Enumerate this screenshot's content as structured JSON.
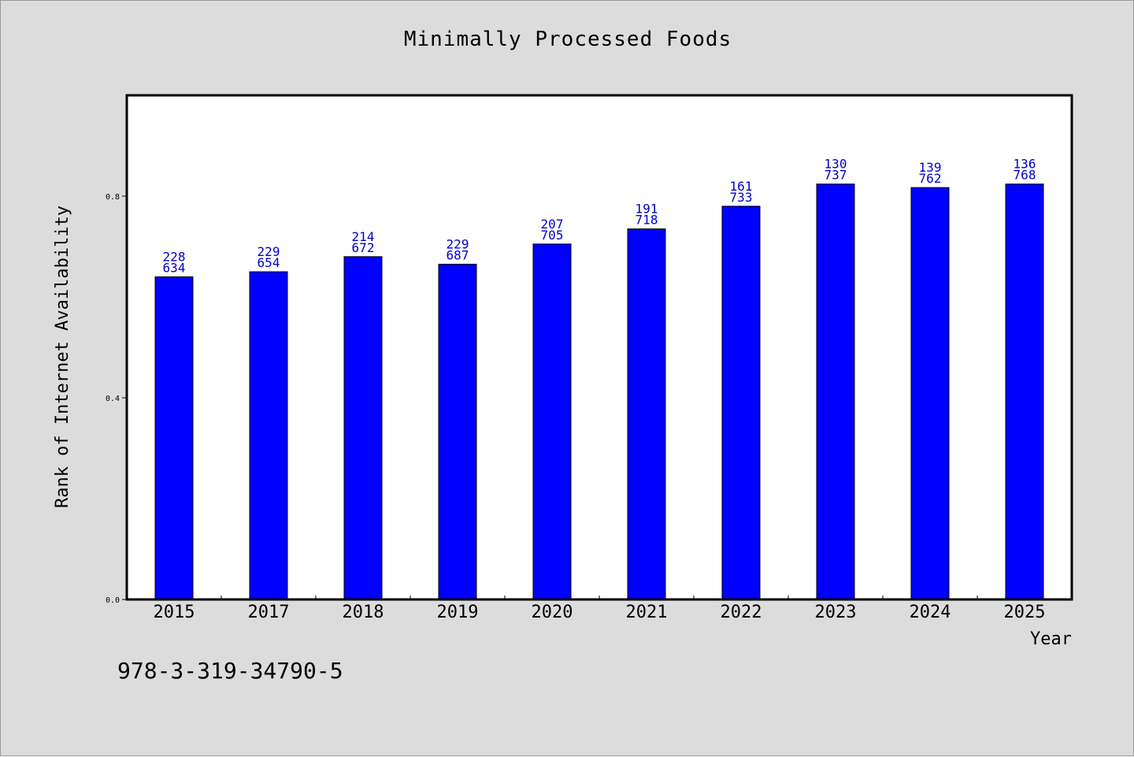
{
  "chart_data": {
    "type": "bar",
    "title": "Minimally Processed Foods",
    "xlabel": "Year",
    "ylabel": "Rank of Internet Availability",
    "categories": [
      "2015",
      "2017",
      "2018",
      "2019",
      "2020",
      "2021",
      "2022",
      "2023",
      "2024",
      "2025"
    ],
    "values": [
      0.634,
      0.654,
      0.672,
      0.687,
      0.705,
      0.718,
      0.733,
      0.737,
      0.762,
      0.768
    ],
    "bar_heights": [
      0.64,
      0.65,
      0.68,
      0.665,
      0.705,
      0.735,
      0.78,
      0.824,
      0.817,
      0.824
    ],
    "label_top": [
      "228",
      "229",
      "214",
      "229",
      "207",
      "191",
      "161",
      "130",
      "139",
      "136"
    ],
    "label_bottom": [
      "634",
      "654",
      "672",
      "687",
      "705",
      "718",
      "733",
      "737",
      "762",
      "768"
    ],
    "yticks": [
      "0.0",
      "0.4",
      "0.8"
    ],
    "ytick_values": [
      0.0,
      0.4,
      0.8
    ],
    "ylim": [
      0,
      1.0
    ],
    "grid": false,
    "bar_color": "#0000ff",
    "label_color": "#0000cc",
    "background_color": "#dcdcdc",
    "plot_background": "#ffffff"
  },
  "footer": {
    "code": "978-3-319-34790-5"
  }
}
